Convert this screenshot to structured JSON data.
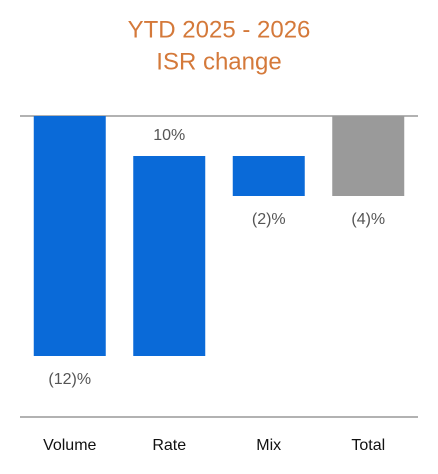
{
  "chart_data": {
    "type": "waterfall",
    "title": "YTD 2025 - 2026",
    "subtitle": "ISR change",
    "categories": [
      "Volume",
      "Rate",
      "Mix",
      "Total"
    ],
    "values": [
      -12,
      10,
      -2,
      -4
    ],
    "value_labels": [
      "(12)%",
      "10%",
      "(2)%",
      "(4)%"
    ],
    "is_total": [
      false,
      false,
      false,
      true
    ],
    "color": "#0a6ad8",
    "total_color": "#9a9a9a",
    "title_color": "#d4793a",
    "ylim": [
      -15,
      0
    ]
  }
}
